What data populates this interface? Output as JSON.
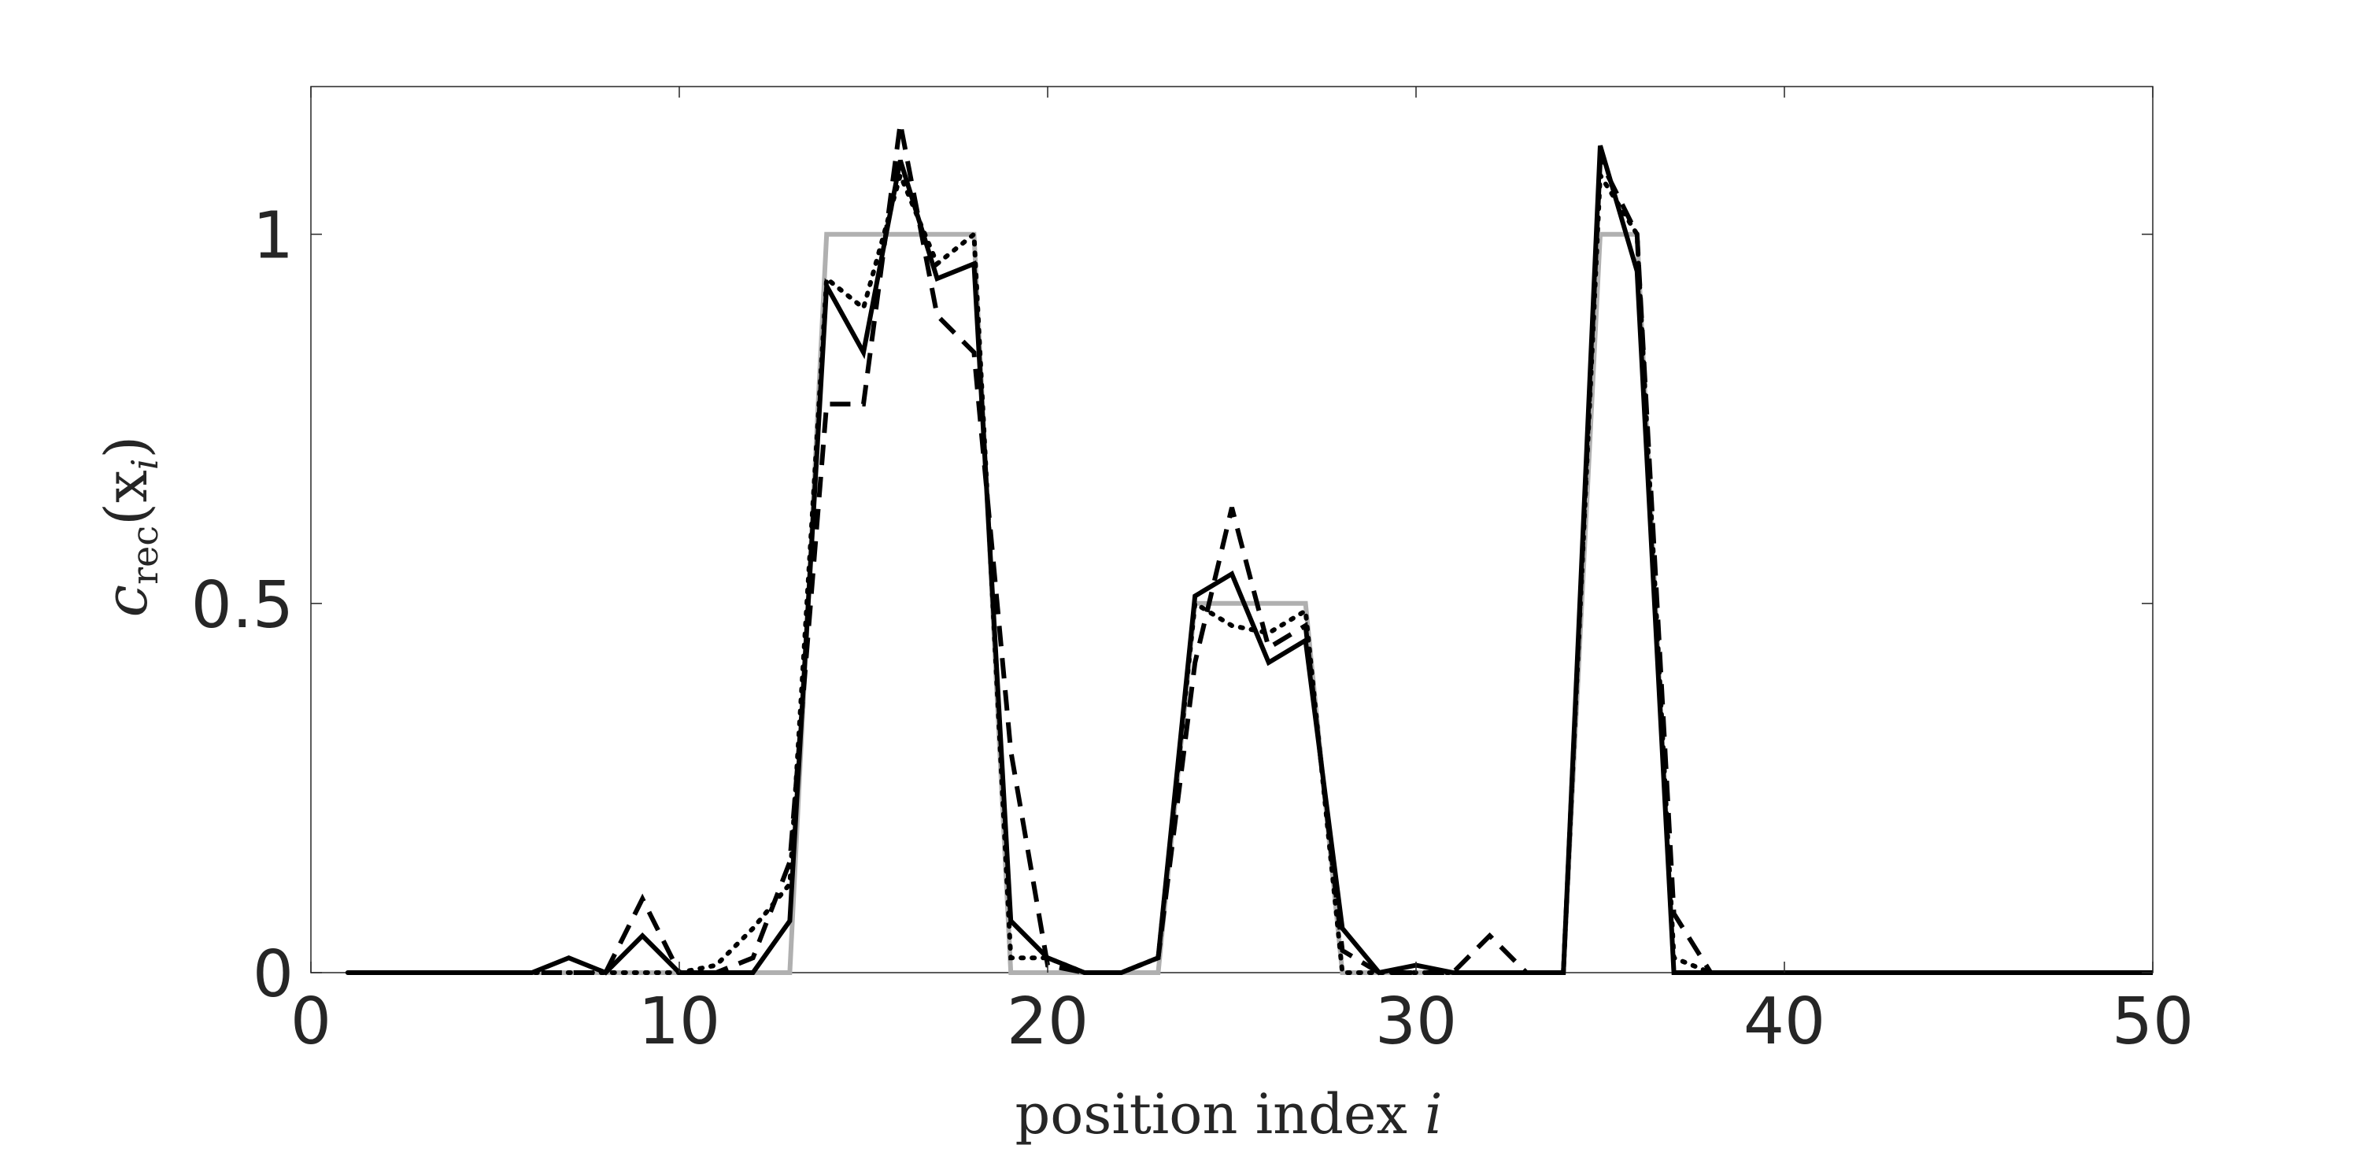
{
  "chart_data": {
    "type": "line",
    "xlabel": {
      "text": "position index ",
      "var": "i"
    },
    "ylabel": {
      "main": "c",
      "sub": "rec",
      "rest": "(x",
      "rest_sub": "i",
      "close": ")"
    },
    "xlim": [
      0,
      50
    ],
    "ylim": [
      0,
      1.2
    ],
    "xticks": [
      0,
      10,
      20,
      30,
      40,
      50
    ],
    "yticks": [
      0,
      0.5,
      1
    ],
    "xtick_labels": [
      "0",
      "10",
      "20",
      "30",
      "40",
      "50"
    ],
    "ytick_labels": [
      "0",
      "0.5",
      "1"
    ],
    "grid": false,
    "x": [
      1,
      2,
      3,
      4,
      5,
      6,
      7,
      8,
      9,
      10,
      11,
      12,
      13,
      14,
      15,
      16,
      17,
      18,
      19,
      20,
      21,
      22,
      23,
      24,
      25,
      26,
      27,
      28,
      29,
      30,
      31,
      32,
      33,
      34,
      35,
      36,
      37,
      38,
      39,
      40,
      41,
      42,
      43,
      44,
      45,
      46,
      47,
      48,
      49,
      50
    ],
    "series": [
      {
        "style": "solid-gray",
        "color": "#b0b0b0",
        "values": [
          0,
          0,
          0,
          0,
          0,
          0,
          0,
          0,
          0,
          0,
          0,
          0,
          0,
          1,
          1,
          1,
          1,
          1,
          0,
          0,
          0,
          0,
          0,
          0.5,
          0.5,
          0.5,
          0.5,
          0,
          0,
          0,
          0,
          0,
          0,
          0,
          1,
          1,
          0,
          0,
          0,
          0,
          0,
          0,
          0,
          0,
          0,
          0,
          0,
          0,
          0,
          0
        ]
      },
      {
        "style": "dashed",
        "color": "#000000",
        "values": [
          0,
          0,
          0,
          0,
          0,
          0,
          0,
          0,
          0.1,
          0,
          0,
          0.02,
          0.15,
          0.77,
          0.77,
          1.15,
          0.89,
          0.84,
          0.3,
          0.01,
          0,
          0,
          0.02,
          0.42,
          0.63,
          0.44,
          0.47,
          0.03,
          0,
          0,
          0,
          0.05,
          0,
          0,
          1.1,
          1,
          0.08,
          0,
          0,
          0,
          0,
          0,
          0,
          0,
          0,
          0,
          0,
          0,
          0,
          0
        ]
      },
      {
        "style": "dotted",
        "color": "#000000",
        "values": [
          0,
          0,
          0,
          0,
          0,
          0,
          0,
          0,
          0,
          0,
          0.01,
          0.06,
          0.12,
          0.94,
          0.9,
          1.08,
          0.96,
          1.0,
          0.02,
          0.02,
          0,
          0,
          0.02,
          0.5,
          0.47,
          0.46,
          0.49,
          0,
          0,
          0,
          0,
          0,
          0,
          0,
          1.08,
          1.0,
          0.02,
          0,
          0,
          0,
          0,
          0,
          0,
          0,
          0,
          0,
          0,
          0,
          0,
          0
        ]
      },
      {
        "style": "solid",
        "color": "#000000",
        "values": [
          0,
          0,
          0,
          0,
          0,
          0,
          0.02,
          0,
          0.05,
          0,
          0,
          0,
          0.07,
          0.93,
          0.84,
          1.1,
          0.94,
          0.96,
          0.07,
          0.02,
          0,
          0,
          0.02,
          0.51,
          0.54,
          0.42,
          0.45,
          0.06,
          0,
          0.01,
          0,
          0,
          0,
          0,
          1.12,
          0.95,
          0,
          0,
          0,
          0,
          0,
          0,
          0,
          0,
          0,
          0,
          0,
          0,
          0,
          0
        ]
      }
    ]
  }
}
